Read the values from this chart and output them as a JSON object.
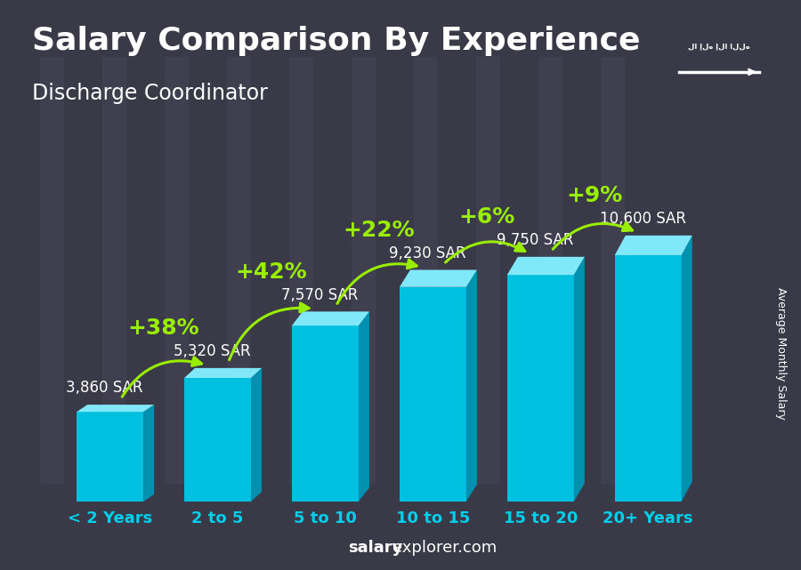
{
  "title": "Salary Comparison By Experience",
  "subtitle": "Discharge Coordinator",
  "categories": [
    "< 2 Years",
    "2 to 5",
    "5 to 10",
    "10 to 15",
    "15 to 20",
    "20+ Years"
  ],
  "values": [
    3860,
    5320,
    7570,
    9230,
    9750,
    10600
  ],
  "bar_color_face": "#00C0E0",
  "bar_color_top": "#80E8F8",
  "bar_color_side": "#0090B0",
  "salary_labels": [
    "3,860 SAR",
    "5,320 SAR",
    "7,570 SAR",
    "9,230 SAR",
    "9,750 SAR",
    "10,600 SAR"
  ],
  "pct_labels": [
    "+38%",
    "+42%",
    "+22%",
    "+6%",
    "+9%"
  ],
  "ylabel_right": "Average Monthly Salary",
  "footer_bold": "salary",
  "footer_normal": "explorer.com",
  "background_color": "#3a3a4a",
  "text_color_white": "#ffffff",
  "text_color_cyan": "#00CFEC",
  "text_color_green": "#99EE00",
  "title_fontsize": 26,
  "subtitle_fontsize": 17,
  "salary_fontsize": 12,
  "pct_fontsize": 18,
  "xlabel_fontsize": 13,
  "flag_color": "#4CAF00",
  "ylim_max": 12500
}
